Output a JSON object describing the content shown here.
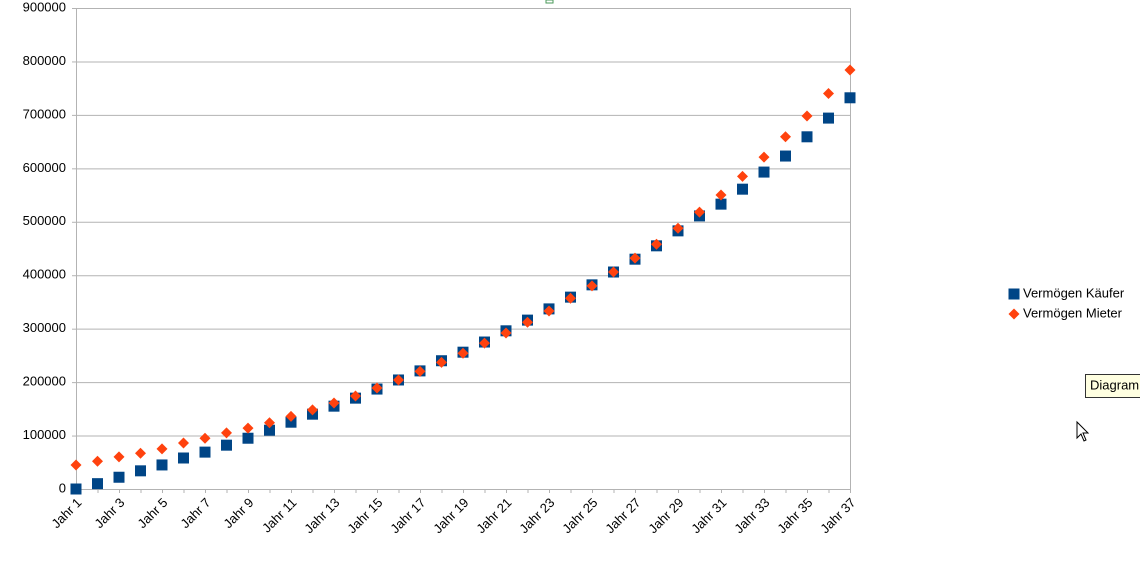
{
  "chart_data": {
    "type": "scatter",
    "categories": [
      "Jahr 1",
      null,
      "Jahr 3",
      null,
      "Jahr 5",
      null,
      "Jahr 7",
      null,
      "Jahr 9",
      null,
      "Jahr 11",
      null,
      "Jahr 13",
      null,
      "Jahr 15",
      null,
      "Jahr 17",
      null,
      "Jahr 19",
      null,
      "Jahr 21",
      null,
      "Jahr 23",
      null,
      "Jahr 25",
      null,
      "Jahr 27",
      null,
      "Jahr 29",
      null,
      "Jahr 31",
      null,
      "Jahr 33",
      null,
      "Jahr 35",
      null,
      "Jahr 37"
    ],
    "series": [
      {
        "name": "Vermögen Käufer",
        "color": "#004586",
        "marker": "square",
        "values": [
          0,
          10000,
          22000,
          34000,
          45000,
          58000,
          69000,
          82000,
          95000,
          110000,
          125000,
          140000,
          155000,
          170000,
          187000,
          204000,
          221000,
          240000,
          256000,
          275000,
          296000,
          316000,
          337000,
          359000,
          382000,
          406000,
          430000,
          455000,
          483000,
          511000,
          533000,
          561000,
          593000,
          623000,
          659000,
          694000,
          732000
        ]
      },
      {
        "name": "Vermögen Mieter",
        "color": "#ff420e",
        "marker": "diamond",
        "values": [
          45000,
          52000,
          60000,
          67000,
          75000,
          86000,
          95000,
          105000,
          114000,
          124000,
          136000,
          148000,
          161000,
          174000,
          189000,
          204000,
          220000,
          237000,
          254000,
          273000,
          292000,
          312000,
          333000,
          357000,
          380000,
          406000,
          432000,
          458000,
          488000,
          518000,
          550000,
          585000,
          621000,
          659000,
          698000,
          740000,
          784000
        ]
      }
    ],
    "ylim": [
      0,
      900000
    ],
    "yticks": [
      0,
      100000,
      200000,
      300000,
      400000,
      500000,
      600000,
      700000,
      800000,
      900000
    ],
    "grid": true,
    "legend": "right"
  },
  "tooltip": "Diagram"
}
